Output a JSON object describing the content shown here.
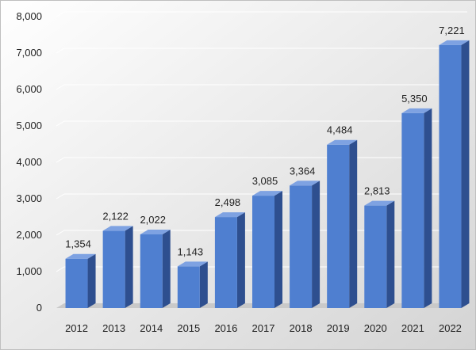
{
  "chart_data": {
    "type": "bar",
    "title": "",
    "xlabel": "",
    "ylabel": "",
    "categories": [
      "2012",
      "2013",
      "2014",
      "2015",
      "2016",
      "2017",
      "2018",
      "2019",
      "2020",
      "2021",
      "2022"
    ],
    "values": [
      1354,
      2122,
      2022,
      1143,
      2498,
      3085,
      3364,
      4484,
      2813,
      5350,
      7221
    ],
    "value_labels": [
      "1,354",
      "2,122",
      "2,022",
      "1,143",
      "2,498",
      "3,085",
      "3,364",
      "4,484",
      "2,813",
      "5,350",
      "7,221"
    ],
    "ylim": [
      0,
      8000
    ],
    "yticks": [
      0,
      1000,
      2000,
      3000,
      4000,
      5000,
      6000,
      7000,
      8000
    ],
    "ytick_labels": [
      "0",
      "1,000",
      "2,000",
      "3,000",
      "4,000",
      "5,000",
      "6,000",
      "7,000",
      "8,000"
    ],
    "grid": true,
    "legend": "none",
    "style": "3d-column",
    "colors": {
      "bar_front": "#4f7fd0",
      "bar_side": "#2e4f8f",
      "bar_top": "#7ea2e2",
      "background_light": "#ffffff",
      "background_dark": "#d4d4d4",
      "floor": "#c9c9c9",
      "gridline": "#ffffff"
    }
  }
}
